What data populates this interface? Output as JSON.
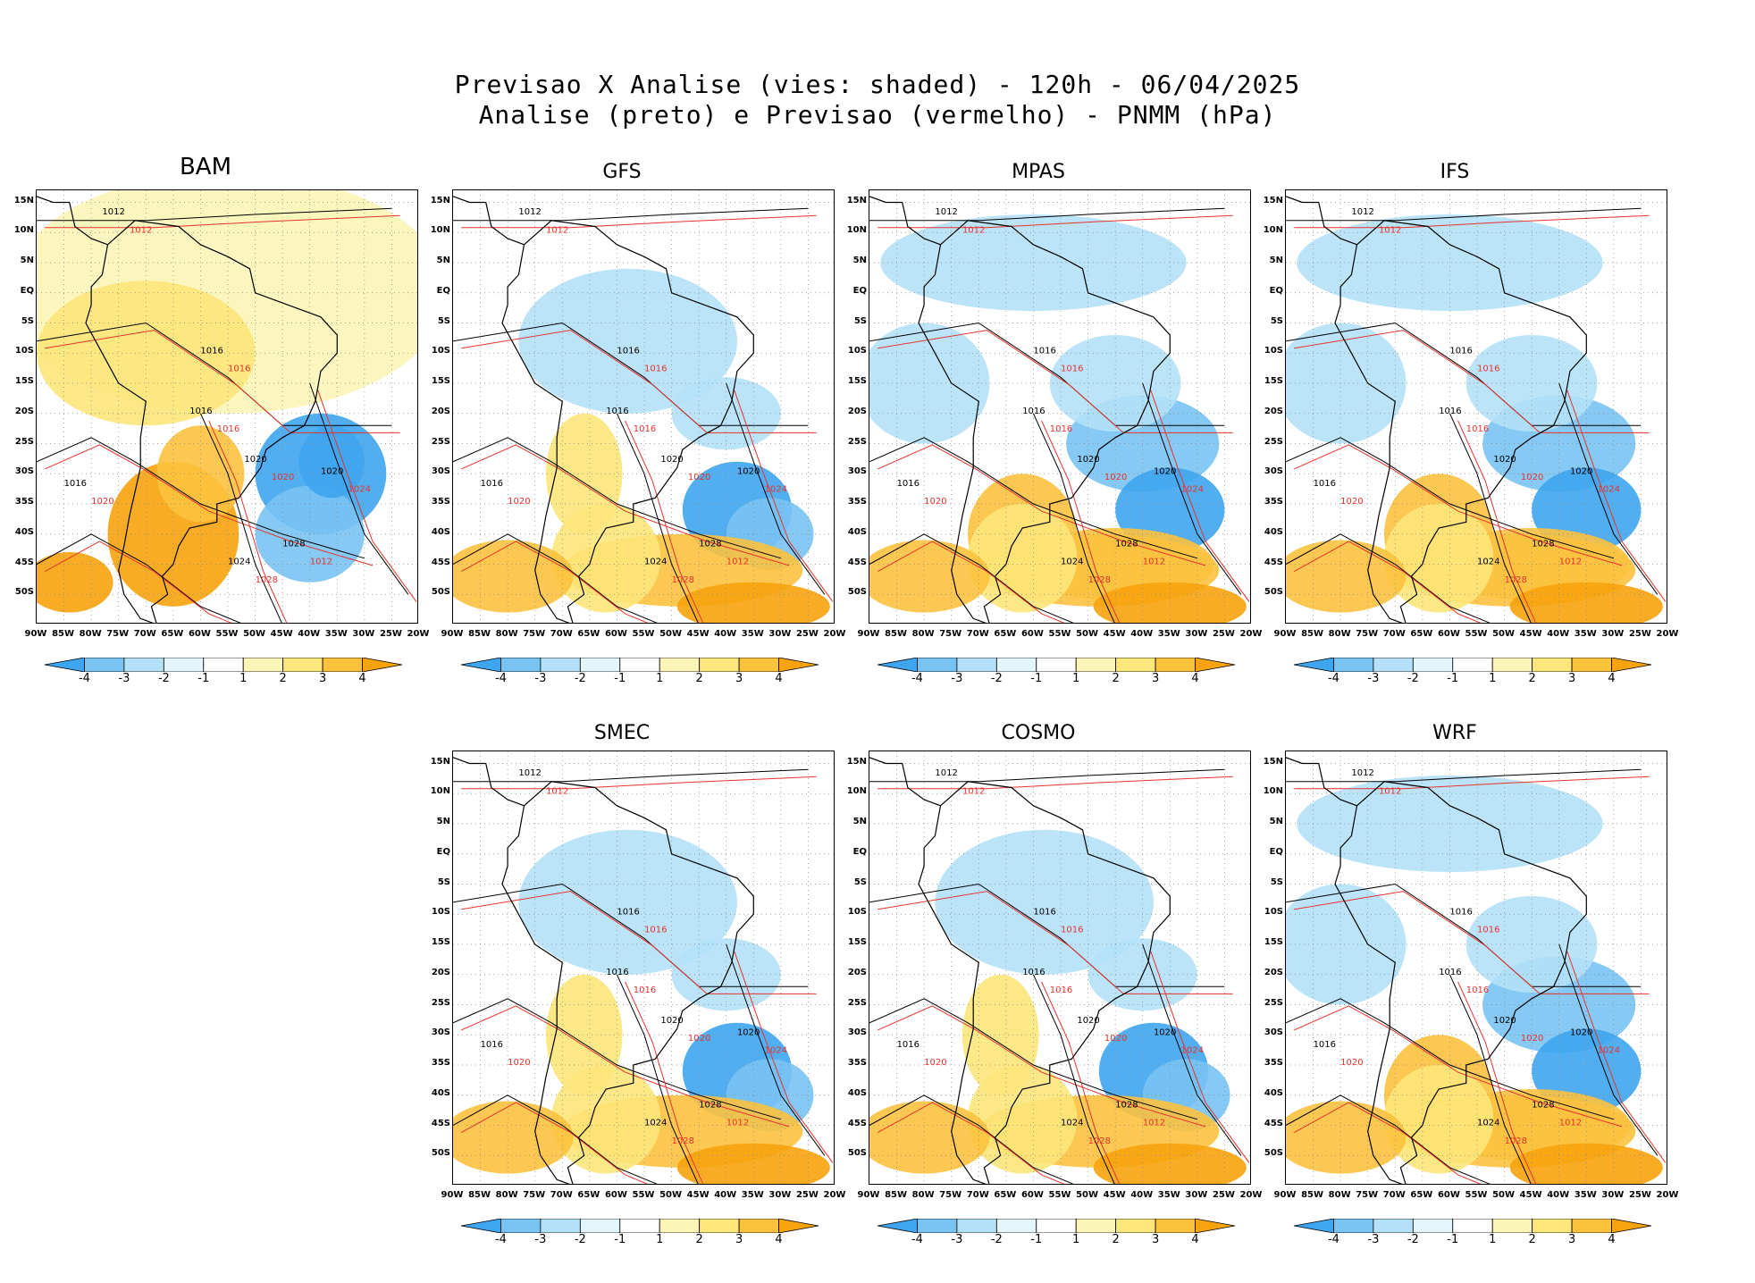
{
  "title_line1": "Previsao X Analise (vies: shaded) - 120h - 06/04/2025",
  "title_line2": "Analise (preto) e Previsao (vermelho) - PNMM (hPa)",
  "lat_labels": [
    "15N",
    "10N",
    "5N",
    "EQ",
    "5S",
    "10S",
    "15S",
    "20S",
    "25S",
    "30S",
    "35S",
    "40S",
    "45S",
    "50S"
  ],
  "lon_labels": [
    "90W",
    "85W",
    "80W",
    "75W",
    "70W",
    "65W",
    "60W",
    "55W",
    "50W",
    "45W",
    "40W",
    "35W",
    "30W",
    "25W",
    "20W"
  ],
  "colorbar": {
    "labels": [
      "-4",
      "-3",
      "-2",
      "-1",
      "1",
      "2",
      "3",
      "4"
    ],
    "colors": [
      "#3ea5f0",
      "#79c3f3",
      "#b4e1f7",
      "#e3f6fb",
      "#ffffff",
      "#fbf5b7",
      "#fde67a",
      "#fcc23e",
      "#f7a30d"
    ]
  },
  "colors": {
    "analysis": "#000000",
    "forecast": "#e8322d"
  },
  "panels": [
    {
      "name": "BAM",
      "bias": "warm"
    },
    {
      "name": "GFS",
      "bias": "mixed"
    },
    {
      "name": "MPAS",
      "bias": "cool"
    },
    {
      "name": "IFS",
      "bias": "cool"
    },
    {
      "name": "SMEC",
      "bias": "mixed"
    },
    {
      "name": "COSMO",
      "bias": "mixed"
    },
    {
      "name": "WRF",
      "bias": "cool"
    }
  ],
  "contour_labels": {
    "analysis": [
      "1012",
      "1016",
      "1016",
      "1020",
      "1020",
      "1024",
      "1028",
      "1016"
    ],
    "forecast": [
      "1012",
      "1016",
      "1016",
      "1020",
      "1024",
      "1028",
      "1012",
      "1020"
    ]
  }
}
